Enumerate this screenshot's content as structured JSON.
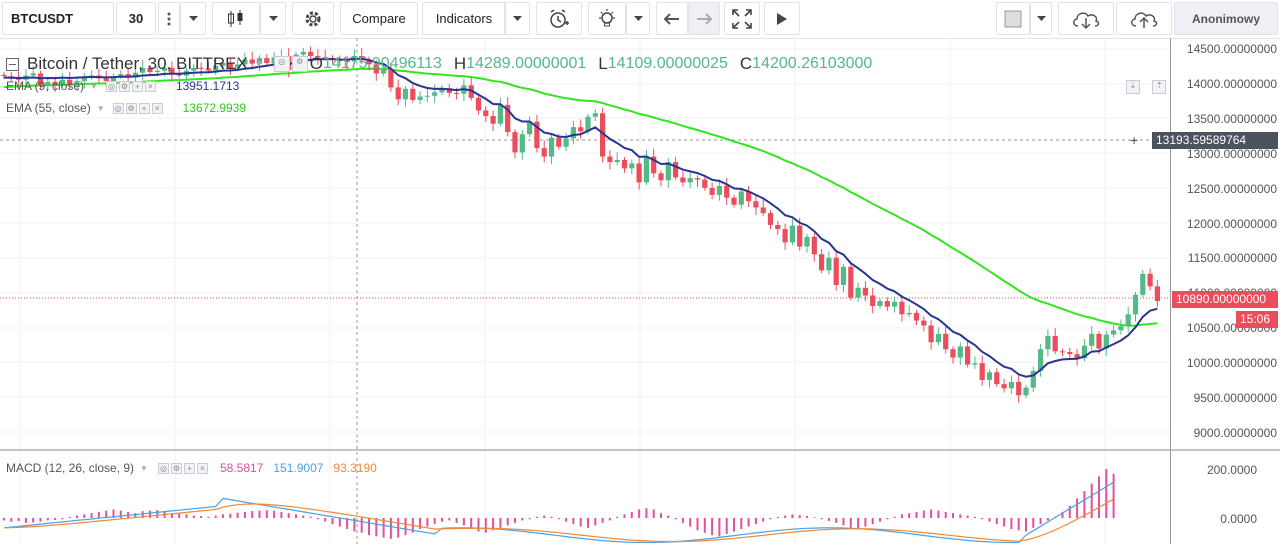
{
  "toolbar": {
    "symbol": "BTCUSDT",
    "interval": "30",
    "compare_label": "Compare",
    "indicators_label": "Indicators",
    "user_label": "Anonimowy"
  },
  "legend": {
    "title": "Bitcoin / Tether, 30, BITTREX",
    "open_label": "O",
    "open": "14175.90496113",
    "high_label": "H",
    "high": "14289.00000001",
    "low_label": "L",
    "low": "14109.00000025",
    "close_label": "C",
    "close": "14200.26103000"
  },
  "indicators": {
    "ema9_label": "EMA (9, close)",
    "ema9_value": "13951.1713",
    "ema55_label": "EMA (55, close)",
    "ema55_value": "13672.9939",
    "macd_label": "MACD (12, 26, close, 9)",
    "macd_hist": "58.5817",
    "macd_line": "151.9007",
    "macd_signal": "93.3190"
  },
  "price_axis": {
    "ticks": [
      "14500.00000000",
      "14000.00000000",
      "13500.00000000",
      "13000.00000000",
      "12500.00000000",
      "12000.00000000",
      "11500.00000000",
      "11000.00000000",
      "10500.00000000",
      "10000.00000000",
      "9500.00000000",
      "9000.00000000"
    ],
    "crosshair_price": "13193.59589764",
    "last_price": "10890.00000000",
    "countdown": "15:06"
  },
  "macd_axis": {
    "ticks": [
      "200.0000",
      "0.0000"
    ]
  },
  "colors": {
    "up": "#53b987",
    "down": "#eb4d5c",
    "ema9": "#283593",
    "ema55": "#32e61e",
    "macd_line": "#4ba2e0",
    "macd_signal": "#f08a35",
    "macd_hist": "#e34f9a"
  },
  "chart_data": {
    "type": "candlestick",
    "y_range": [
      8800,
      14600
    ],
    "closes": [
      14110,
      14100,
      14060,
      14120,
      14150,
      13980,
      14030,
      13990,
      14060,
      13980,
      14040,
      14100,
      14120,
      14080,
      14040,
      14110,
      14140,
      14090,
      14160,
      14230,
      14170,
      14190,
      14230,
      14150,
      14120,
      14190,
      14230,
      14220,
      14190,
      14260,
      14300,
      14230,
      14280,
      14350,
      14290,
      14370,
      14300,
      14380,
      14400,
      14200,
      14420,
      14460,
      14400,
      14380,
      14370,
      14350,
      14330,
      14320,
      14400,
      14350,
      14280,
      14150,
      14210,
      13950,
      13780,
      13930,
      13770,
      13820,
      13830,
      13880,
      13940,
      13870,
      13860,
      13980,
      13800,
      13620,
      13540,
      13430,
      13700,
      13310,
      13020,
      13280,
      13460,
      13080,
      12960,
      13230,
      13100,
      13220,
      13380,
      13320,
      13530,
      13580,
      12960,
      12880,
      12910,
      12790,
      12860,
      12590,
      12960,
      12720,
      12620,
      12880,
      12660,
      12590,
      12650,
      12630,
      12510,
      12410,
      12540,
      12370,
      12270,
      12460,
      12320,
      12230,
      12150,
      11980,
      11920,
      11730,
      11970,
      11670,
      11810,
      11560,
      11330,
      11510,
      11120,
      11380,
      10940,
      11080,
      10970,
      10820,
      10890,
      10810,
      10880,
      10700,
      10720,
      10610,
      10540,
      10300,
      10420,
      10200,
      10080,
      10240,
      9980,
      10000,
      9760,
      9870,
      9700,
      9640,
      9730,
      9540,
      9650,
      9890,
      10200,
      10390,
      10170,
      10160,
      10130,
      10070,
      10250,
      10420,
      10210,
      10410,
      10470,
      10530,
      10700,
      10980,
      11280,
      11100,
      10890
    ],
    "ema9": [
      14090,
      14089,
      14084,
      14089,
      14092,
      14080,
      14085,
      14083,
      14090,
      14085,
      14090,
      14096,
      14100,
      14098,
      14093,
      14098,
      14104,
      14102,
      14108,
      14120,
      14126,
      14132,
      14143,
      14146,
      14145,
      14153,
      14160,
      14165,
      14168,
      14177,
      14190,
      14192,
      14200,
      14218,
      14228,
      14246,
      14260,
      14280,
      14300,
      14285,
      14305,
      14330,
      14345,
      14352,
      14356,
      14355,
      14350,
      14345,
      14360,
      14358,
      14342,
      14303,
      14285,
      14216,
      14125,
      14080,
      14012,
      13971,
      13942,
      13929,
      13931,
      13921,
      13911,
      13926,
      13905,
      13846,
      13785,
      13712,
      13710,
      13630,
      13508,
      13462,
      13461,
      13383,
      13302,
      13283,
      13246,
      13240,
      13268,
      13278,
      13328,
      13378,
      13294,
      13212,
      13152,
      13082,
      13051,
      12955,
      12960,
      12912,
      12853,
      12858,
      12818,
      12772,
      12747,
      12723,
      12681,
      12626,
      12610,
      12562,
      12504,
      12495,
      12460,
      12410,
      12360,
      12290,
      12215,
      12120,
      12090,
      12010,
      11970,
      11890,
      11780,
      11726,
      11604,
      11555,
      11432,
      11360,
      11282,
      11191,
      11135,
      11068,
      11028,
      10954,
      10902,
      10840,
      10776,
      10680,
      10630,
      10544,
      10450,
      10407,
      10325,
      10260,
      10163,
      10101,
      10020,
      9950,
      9920,
      9840,
      9806,
      9825,
      9904,
      9999,
      10031,
      10054,
      10060,
      10064,
      10096,
      10166,
      10173,
      10225,
      10273,
      10325,
      10400,
      10515,
      10665,
      10752,
      10780
    ],
    "ema55": [
      13955,
      13960,
      13965,
      13970,
      13975,
      13978,
      13982,
      13985,
      13989,
      13991,
      13994,
      13998,
      14003,
      14006,
      14008,
      14012,
      14017,
      14020,
      14025,
      14032,
      14037,
      14042,
      14049,
      14053,
      14056,
      14061,
      14067,
      14072,
      14076,
      14082,
      14090,
      14095,
      14101,
      14110,
      14116,
      14125,
      14131,
      14140,
      14149,
      14150,
      14160,
      14170,
      14177,
      14183,
      14189,
      14194,
      14199,
      14203,
      14210,
      14215,
      14217,
      14215,
      14215,
      14206,
      14191,
      14183,
      14169,
      14158,
      14148,
      14140,
      14133,
      14124,
      14115,
      14110,
      14099,
      14083,
      14064,
      14042,
      14030,
      14004,
      13968,
      13943,
      13926,
      13896,
      13861,
      13840,
      13815,
      13794,
      13780,
      13764,
      13757,
      13751,
      13725,
      13693,
      13665,
      13634,
      13607,
      13571,
      13549,
      13519,
      13487,
      13463,
      13431,
      13398,
      13369,
      13340,
      13308,
      13274,
      13245,
      13211,
      13174,
      13143,
      13110,
      13075,
      13037,
      12994,
      12951,
      12902,
      12863,
      12815,
      12773,
      12723,
      12667,
      12620,
      12561,
      12513,
      12450,
      12397,
      12342,
      12283,
      12230,
      12175,
      12124,
      12067,
      12015,
      11959,
      11903,
      11836,
      11778,
      11712,
      11645,
      11586,
      11519,
      11455,
      11383,
      11317,
      11247,
      11177,
      11113,
      11042,
      10978,
      10925,
      10884,
      10852,
      10813,
      10776,
      10739,
      10702,
      10672,
      10649,
      10616,
      10591,
      10569,
      10549,
      10536,
      10539,
      10553,
      10561,
      10571
    ],
    "macd_hist": [
      -10,
      -15,
      -12,
      -20,
      -18,
      -15,
      -10,
      -8,
      -5,
      5,
      10,
      15,
      20,
      25,
      30,
      35,
      30,
      25,
      20,
      28,
      30,
      32,
      25,
      20,
      18,
      15,
      10,
      8,
      5,
      10,
      15,
      18,
      22,
      25,
      28,
      30,
      32,
      30,
      25,
      20,
      15,
      10,
      5,
      -5,
      -15,
      -25,
      -35,
      -45,
      -55,
      -60,
      -70,
      -75,
      -80,
      -85,
      -80,
      -70,
      -60,
      -45,
      -35,
      -25,
      -15,
      -10,
      -20,
      -30,
      -45,
      -55,
      -60,
      -50,
      -40,
      -30,
      -20,
      -10,
      -5,
      5,
      10,
      5,
      -5,
      -15,
      -25,
      -35,
      -40,
      -30,
      -20,
      -10,
      5,
      15,
      25,
      35,
      40,
      35,
      20,
      10,
      -5,
      -20,
      -35,
      -50,
      -60,
      -70,
      -75,
      -65,
      -55,
      -45,
      -35,
      -25,
      -15,
      -5,
      5,
      10,
      15,
      12,
      8,
      3,
      -5,
      -12,
      -20,
      -30,
      -40,
      -45,
      -35,
      -25,
      -15,
      -5,
      5,
      15,
      20,
      25,
      30,
      35,
      30,
      25,
      20,
      15,
      10,
      5,
      -5,
      -15,
      -25,
      -35,
      -45,
      -50,
      -55,
      -40,
      -25,
      -10,
      5,
      25,
      50,
      80,
      110,
      140,
      170,
      200,
      180
    ]
  }
}
